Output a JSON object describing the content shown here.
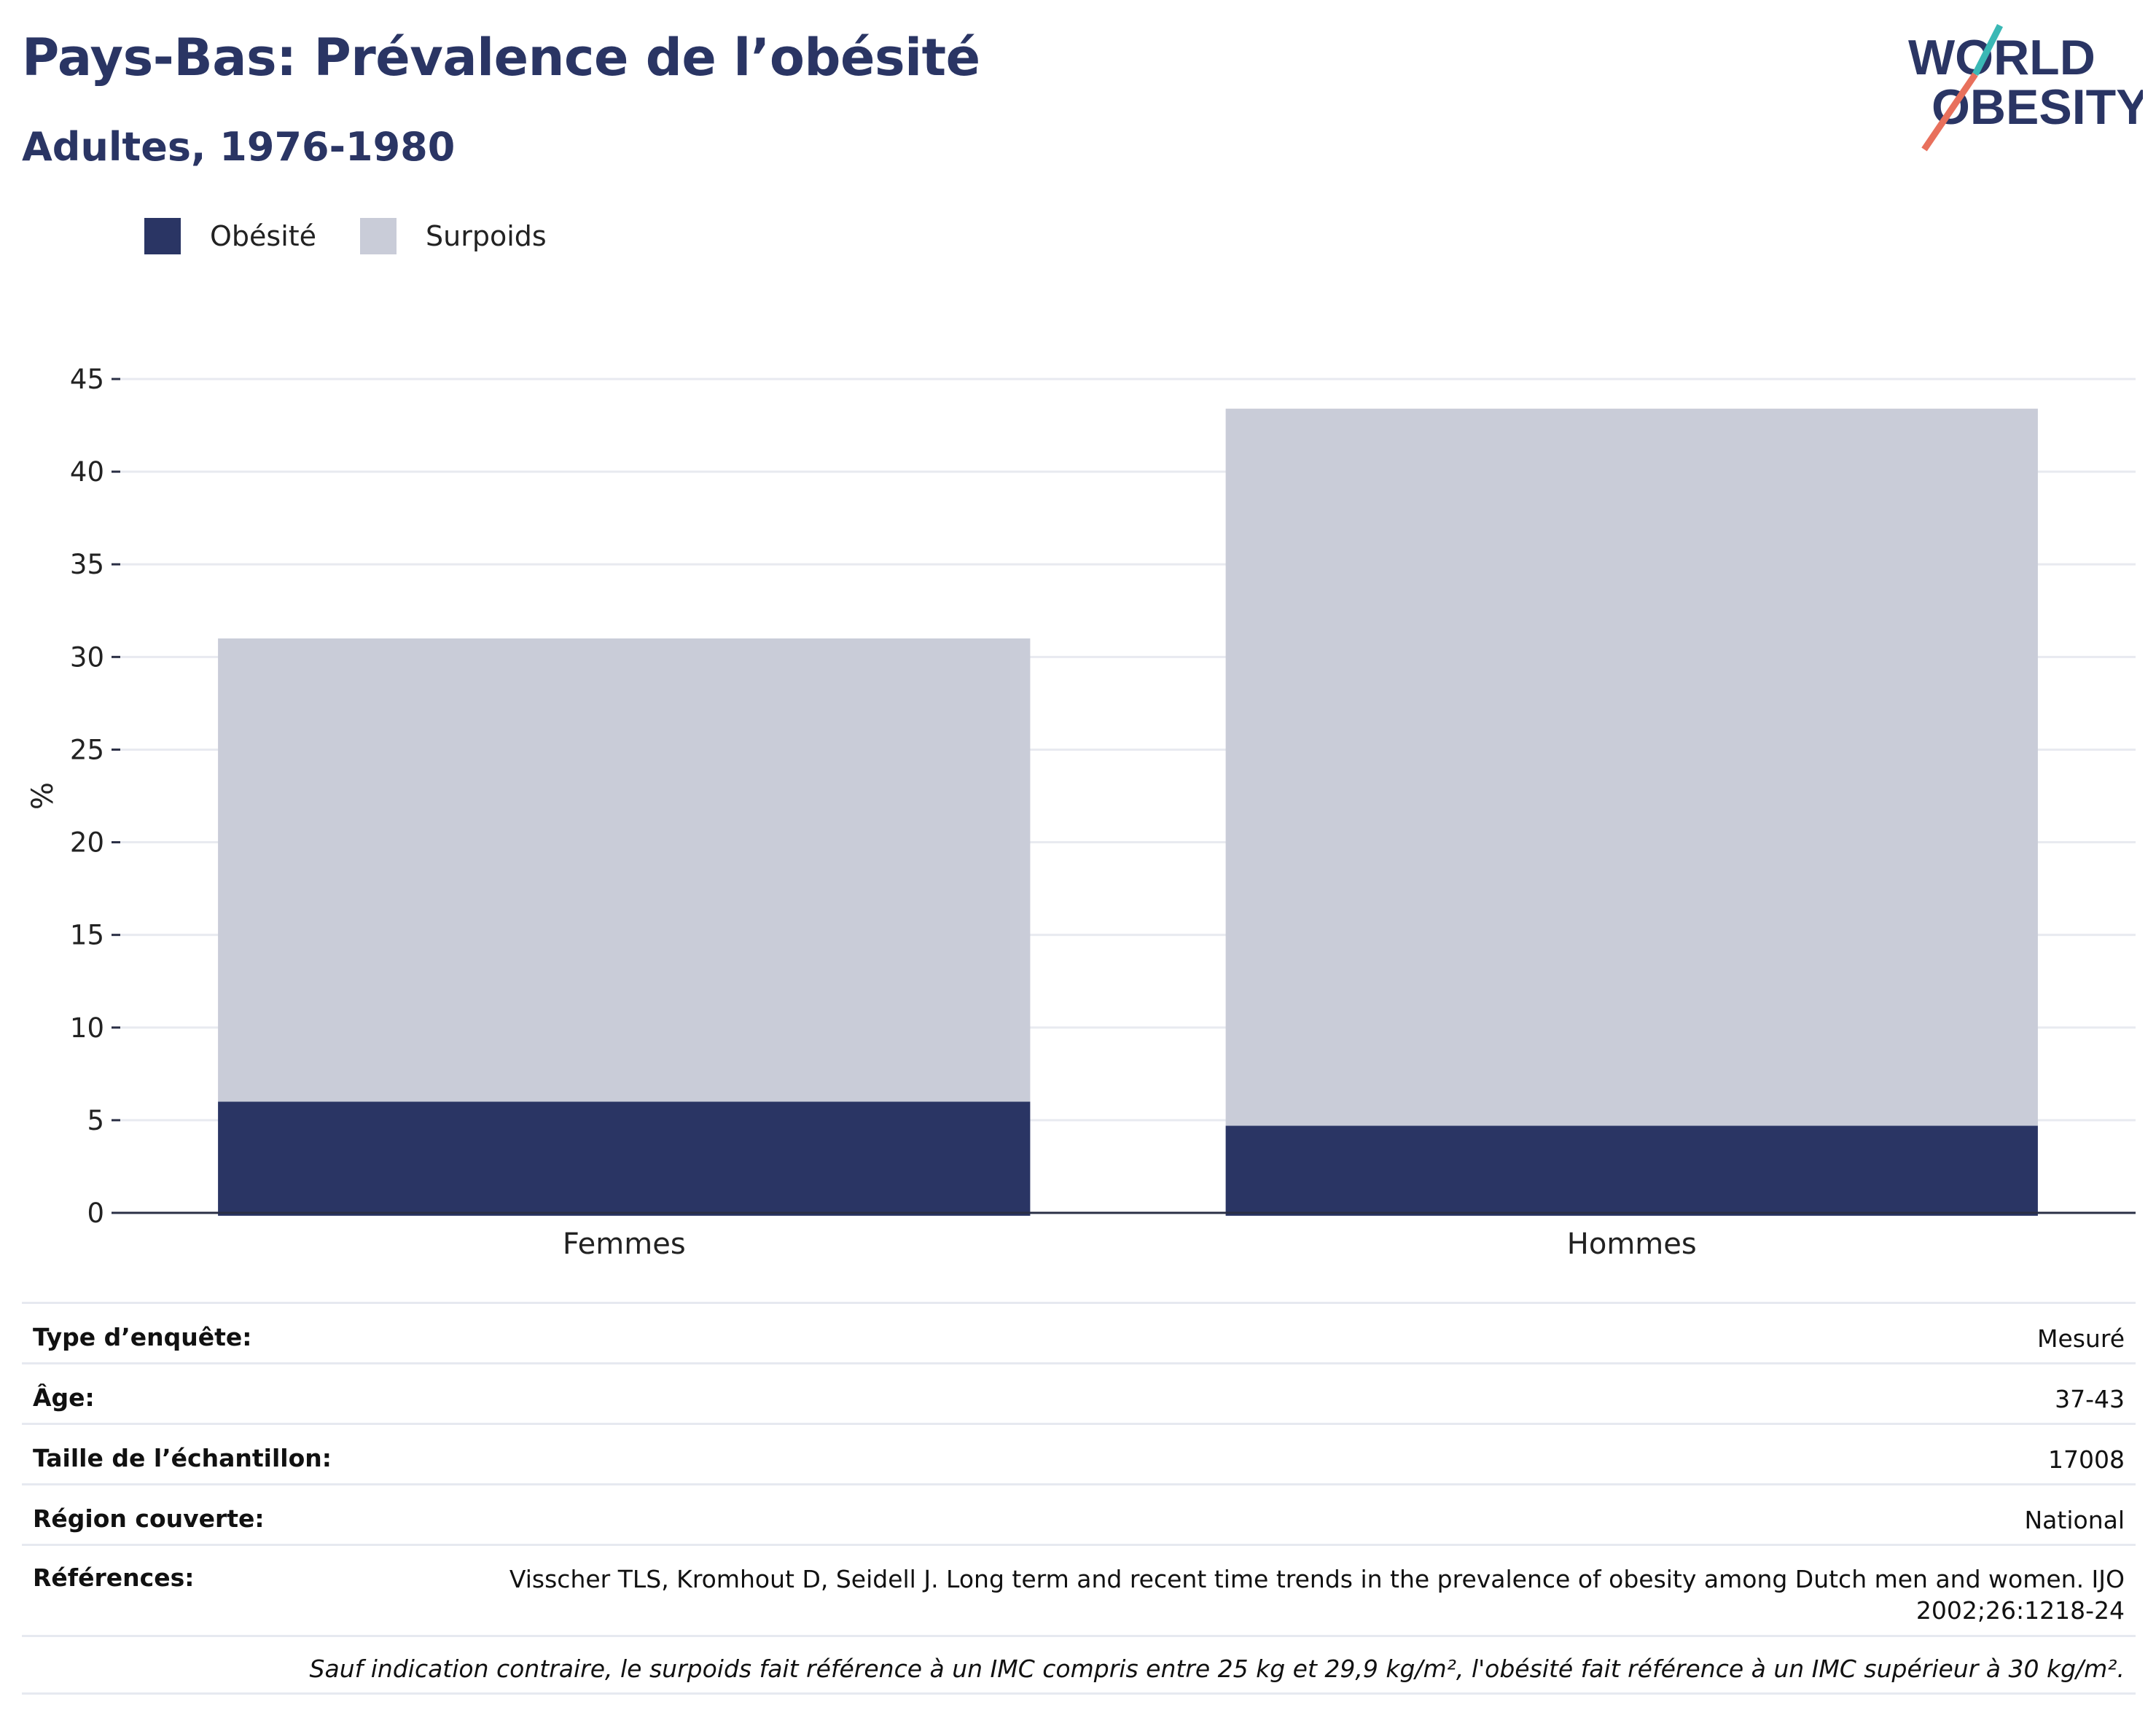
{
  "header": {
    "title": "Pays-Bas: Prévalence de l’obésité",
    "subtitle": "Adultes, 1976-1980"
  },
  "logo": {
    "line1": "WORLD",
    "line2": "OBESITY",
    "colors": {
      "text": "#2a3564",
      "slash_top": "#3ab8b5",
      "slash_bottom": "#e8705c"
    }
  },
  "legend": {
    "items": [
      {
        "label": "Obésité",
        "color": "#2a3564"
      },
      {
        "label": "Surpoids",
        "color": "#c9ccd8"
      }
    ]
  },
  "chart_data": {
    "type": "bar",
    "stacked": true,
    "categories": [
      "Femmes",
      "Hommes"
    ],
    "series": [
      {
        "name": "Obésité",
        "color": "#2a3564",
        "values": [
          6.0,
          4.7
        ]
      },
      {
        "name": "Surpoids",
        "color": "#c9ccd8",
        "values": [
          25.0,
          38.7
        ]
      }
    ],
    "ylabel": "%",
    "ylim": [
      0,
      45
    ],
    "yticks": [
      0,
      5,
      10,
      15,
      20,
      25,
      30,
      35,
      40,
      45
    ],
    "grid": true
  },
  "info": {
    "rows": [
      {
        "key": "Type d’enquête:",
        "value": "Mesuré"
      },
      {
        "key": "Âge:",
        "value": "37-43"
      },
      {
        "key": "Taille de l’échantillon:",
        "value": "17008"
      },
      {
        "key": "Région couverte:",
        "value": "National"
      },
      {
        "key": "Références:",
        "value": "Visscher TLS, Kromhout D, Seidell J. Long term and recent time trends in the prevalence of obesity among Dutch men and women. IJO 2002;26:1218-24"
      }
    ],
    "note": "Sauf indication contraire, le surpoids fait référence à un IMC compris entre 25 kg et 29,9 kg/m², l'obésité fait référence à un IMC supérieur à 30 kg/m²."
  }
}
